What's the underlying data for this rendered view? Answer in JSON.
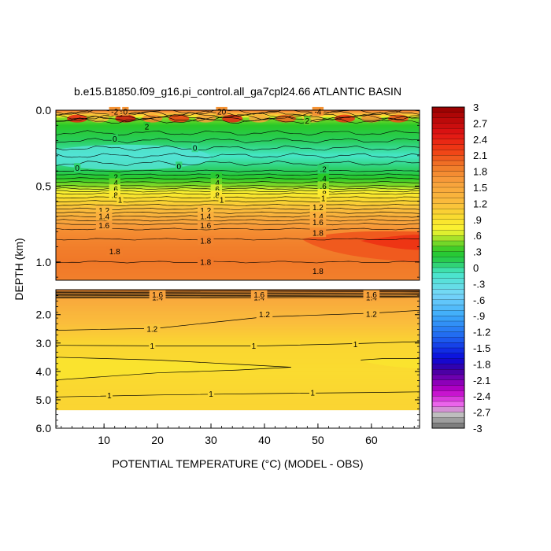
{
  "chart_data": {
    "type": "heatmap",
    "title": "b.e15.B1850.f09_g16.pi_control.all_ga7cpl24.66 ATLANTIC BASIN",
    "xlabel": "POTENTIAL TEMPERATURE (°C) (MODEL - OBS)",
    "ylabel": "DEPTH (km)",
    "xlim": [
      1,
      69
    ],
    "x_ticks": [
      "10",
      "20",
      "30",
      "40",
      "50",
      "60"
    ],
    "x_tick_values": [
      10,
      20,
      30,
      40,
      50,
      60
    ],
    "upper_panel": {
      "ylim": [
        0.0,
        1.12
      ],
      "y_ticks": [
        "0.0",
        "0.5",
        "1.0"
      ],
      "y_tick_values": [
        0.0,
        0.5,
        1.0
      ]
    },
    "lower_panel": {
      "ylim": [
        1.12,
        6.0
      ],
      "y_ticks": [
        "2.0",
        "3.0",
        "4.0",
        "5.0",
        "6.0"
      ],
      "y_tick_values": [
        2.0,
        3.0,
        4.0,
        5.0,
        6.0
      ],
      "data_bottom_km": 5.35
    },
    "colorbar": {
      "range": [
        -3,
        3
      ],
      "interval": 0.1,
      "tick_labels": [
        "3",
        "2.7",
        "2.4",
        "2.1",
        "1.8",
        "1.5",
        "1.2",
        ".9",
        ".6",
        ".3",
        "0",
        "-.3",
        "-.6",
        "-.9",
        "-1.2",
        "-1.5",
        "-1.8",
        "-2.1",
        "-2.4",
        "-2.7",
        "-3"
      ],
      "tick_values": [
        3,
        2.7,
        2.4,
        2.1,
        1.8,
        1.5,
        1.2,
        0.9,
        0.6,
        0.3,
        0,
        -0.3,
        -0.6,
        -0.9,
        -1.2,
        -1.5,
        -1.8,
        -2.1,
        -2.4,
        -2.7,
        -3
      ]
    },
    "profile": {
      "depth_km": [
        0.0,
        0.05,
        0.1,
        0.2,
        0.3,
        0.35,
        0.4,
        0.45,
        0.5,
        0.55,
        0.6,
        0.65,
        0.7,
        0.75,
        0.8,
        0.9,
        1.0,
        1.1,
        1.2,
        1.4,
        2.0,
        3.0,
        4.0,
        5.0,
        5.35
      ],
      "value": [
        2.0,
        0.5,
        0.3,
        0.1,
        -0.1,
        0.0,
        0.1,
        0.3,
        0.5,
        0.8,
        1.0,
        1.2,
        1.4,
        1.6,
        1.75,
        1.85,
        1.9,
        1.85,
        1.65,
        1.5,
        1.3,
        1.0,
        0.95,
        1.0,
        1.0
      ]
    },
    "contour_labels_upper": [
      {
        "x": 12,
        "y": 0.01,
        "text": "-2"
      },
      {
        "x": 14,
        "y": 0.01,
        "text": "0"
      },
      {
        "x": 32,
        "y": 0.01,
        "text": "20"
      },
      {
        "x": 50,
        "y": 0.01,
        "text": "-4"
      },
      {
        "x": 18,
        "y": 0.11,
        "text": "2"
      },
      {
        "x": 48,
        "y": 0.07,
        "text": "2"
      },
      {
        "x": 12,
        "y": 0.19,
        "text": "0"
      },
      {
        "x": 27,
        "y": 0.25,
        "text": "0"
      },
      {
        "x": 5,
        "y": 0.38,
        "text": "0"
      },
      {
        "x": 24,
        "y": 0.37,
        "text": "0"
      },
      {
        "x": 12,
        "y": 0.44,
        "text": ".2"
      },
      {
        "x": 31,
        "y": 0.44,
        "text": ".2"
      },
      {
        "x": 51,
        "y": 0.39,
        "text": ".2"
      },
      {
        "x": 12,
        "y": 0.48,
        "text": ".4"
      },
      {
        "x": 31,
        "y": 0.48,
        "text": ".4"
      },
      {
        "x": 51,
        "y": 0.45,
        "text": ".4"
      },
      {
        "x": 12,
        "y": 0.52,
        "text": ".6"
      },
      {
        "x": 31,
        "y": 0.52,
        "text": ".6"
      },
      {
        "x": 51,
        "y": 0.5,
        "text": ".6"
      },
      {
        "x": 12,
        "y": 0.56,
        "text": ".8"
      },
      {
        "x": 31,
        "y": 0.56,
        "text": ".8"
      },
      {
        "x": 51,
        "y": 0.55,
        "text": ".8"
      },
      {
        "x": 13,
        "y": 0.59,
        "text": "1"
      },
      {
        "x": 32,
        "y": 0.59,
        "text": "1"
      },
      {
        "x": 51,
        "y": 0.58,
        "text": "1"
      },
      {
        "x": 10,
        "y": 0.66,
        "text": "1.2"
      },
      {
        "x": 29,
        "y": 0.66,
        "text": "1.2"
      },
      {
        "x": 50,
        "y": 0.64,
        "text": "1.2"
      },
      {
        "x": 10,
        "y": 0.7,
        "text": "1.4"
      },
      {
        "x": 29,
        "y": 0.7,
        "text": "1.4"
      },
      {
        "x": 50,
        "y": 0.7,
        "text": "1.4"
      },
      {
        "x": 10,
        "y": 0.76,
        "text": "1.6"
      },
      {
        "x": 29,
        "y": 0.76,
        "text": "1.6"
      },
      {
        "x": 50,
        "y": 0.74,
        "text": "1.6"
      },
      {
        "x": 50,
        "y": 0.81,
        "text": "1.8"
      },
      {
        "x": 29,
        "y": 0.86,
        "text": "1.8"
      },
      {
        "x": 12,
        "y": 0.93,
        "text": "1.8"
      },
      {
        "x": 29,
        "y": 1.0,
        "text": "1.8"
      },
      {
        "x": 50,
        "y": 1.06,
        "text": "1.8"
      }
    ],
    "contour_labels_lower": [
      {
        "x": 20,
        "y": 1.4,
        "text": "1.4"
      },
      {
        "x": 39,
        "y": 1.4,
        "text": "1.4"
      },
      {
        "x": 60,
        "y": 1.4,
        "text": "1.4"
      },
      {
        "x": 20,
        "y": 1.3,
        "text": "1.6"
      },
      {
        "x": 39,
        "y": 1.3,
        "text": "1.6"
      },
      {
        "x": 60,
        "y": 1.3,
        "text": "1.6"
      },
      {
        "x": 19,
        "y": 2.5,
        "text": "1.2"
      },
      {
        "x": 40,
        "y": 2.0,
        "text": "1.2"
      },
      {
        "x": 60,
        "y": 1.98,
        "text": "1.2"
      },
      {
        "x": 19,
        "y": 3.1,
        "text": "1"
      },
      {
        "x": 38,
        "y": 3.1,
        "text": "1"
      },
      {
        "x": 57,
        "y": 3.05,
        "text": "1"
      },
      {
        "x": 11,
        "y": 4.85,
        "text": "1"
      },
      {
        "x": 30,
        "y": 4.8,
        "text": "1"
      },
      {
        "x": 49,
        "y": 4.75,
        "text": "1"
      }
    ]
  }
}
